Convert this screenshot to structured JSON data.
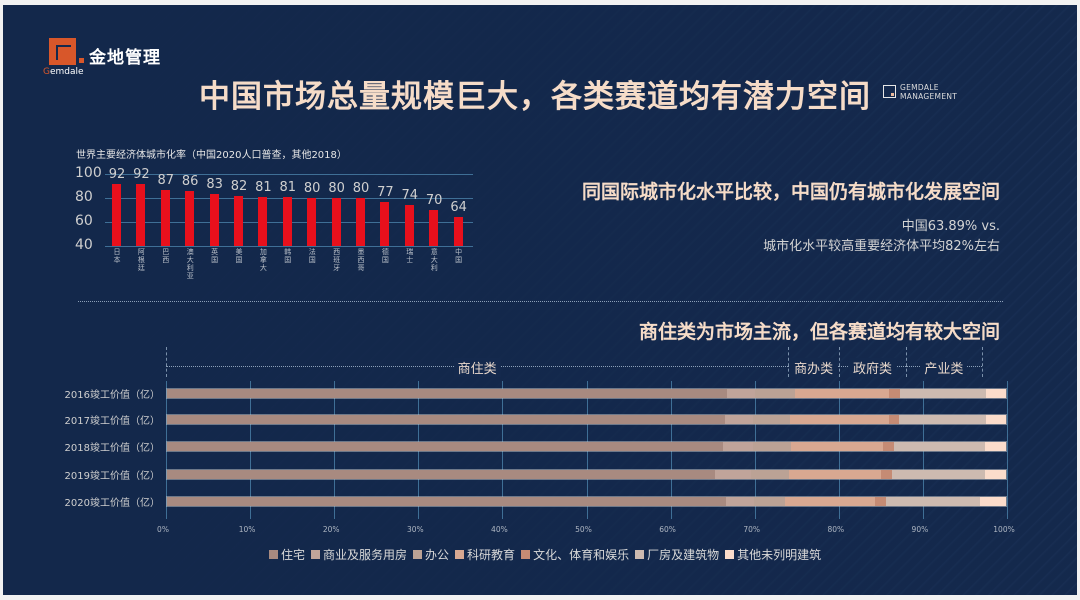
{
  "brand": {
    "name_cn": "金地管理",
    "name_en_first": "G",
    "name_en_rest": "emdale",
    "partner_line1": "GEMDALE",
    "partner_line2": "MANAGEMENT"
  },
  "title": "中国市场总量规模巨大，各类赛道均有潜力空间",
  "section1": {
    "heading": "同国际城市化水平比较，中国仍有城市化发展空间",
    "note_line1": "中国63.89% vs.",
    "note_line2": "城市化水平较高重要经济体平均82%左右"
  },
  "section2": {
    "heading": "商住类为市场主流，但各赛道均有较大空间",
    "groups": [
      {
        "label": "商住类",
        "start": 0,
        "end": 74
      },
      {
        "label": "商办类",
        "start": 74,
        "end": 80
      },
      {
        "label": "政府类",
        "start": 80,
        "end": 88
      },
      {
        "label": "产业类",
        "start": 88,
        "end": 97
      }
    ]
  },
  "colors": {
    "background": "#14294d",
    "bar_red": "#e8101c",
    "title_peach": "#f6dcc8",
    "brand_orange": "#d8572a"
  },
  "chart_data": [
    {
      "type": "bar",
      "title": "世界主要经济体城市化率（中国2020人口普查，其他2018）",
      "categories": [
        "日本",
        "阿根廷",
        "巴西",
        "澳大利亚",
        "英国",
        "美国",
        "加拿大",
        "韩国",
        "法国",
        "西班牙",
        "墨西哥",
        "德国",
        "瑞士",
        "意大利",
        "中国"
      ],
      "values": [
        92,
        92,
        87,
        86,
        83,
        82,
        81,
        81,
        80,
        80,
        80,
        77,
        74,
        70,
        64
      ],
      "xlabel": "",
      "ylabel": "",
      "ylim": [
        40,
        100
      ],
      "yticks": [
        "100",
        "80",
        "60",
        "40"
      ],
      "grid": true,
      "bar_color": "#e8101c"
    },
    {
      "type": "bar",
      "orientation": "horizontal",
      "stacked": true,
      "title": "",
      "categories": [
        "2016竣工价值（亿）",
        "2017竣工价值（亿）",
        "2018竣工价值（亿）",
        "2019竣工价值（亿）",
        "2020竣工价值（亿）"
      ],
      "xticks": [
        "0%",
        "10%",
        "20%",
        "30%",
        "40%",
        "50%",
        "60%",
        "70%",
        "80%",
        "90%",
        "100%"
      ],
      "xlim": [
        0,
        100
      ],
      "legend_position": "bottom",
      "series": [
        {
          "name": "住宅",
          "color": "#a88a80",
          "values": [
            66.8,
            66.5,
            66.3,
            65.3,
            66.6
          ]
        },
        {
          "name": "商业及服务用房",
          "color": "#c0a49a",
          "values": [
            3.3,
            3.4,
            3.6,
            4.3,
            3.4
          ]
        },
        {
          "name": "办公",
          "color": "#bba295",
          "values": [
            4.8,
            4.4,
            4.5,
            4.5,
            3.7
          ]
        },
        {
          "name": "科研教育",
          "color": "#d8a891",
          "values": [
            11.2,
            11.7,
            11.0,
            11.0,
            10.7
          ]
        },
        {
          "name": "文化、体育和娱乐",
          "color": "#c58b74",
          "values": [
            1.3,
            1.3,
            1.2,
            1.3,
            1.3
          ]
        },
        {
          "name": "厂房及建筑物",
          "color": "#cdbab0",
          "values": [
            10.2,
            10.3,
            10.9,
            11.1,
            11.2
          ]
        },
        {
          "name": "其他未列明建筑",
          "color": "#fbdccb",
          "values": [
            2.4,
            2.4,
            2.5,
            2.5,
            3.1
          ]
        }
      ]
    }
  ]
}
